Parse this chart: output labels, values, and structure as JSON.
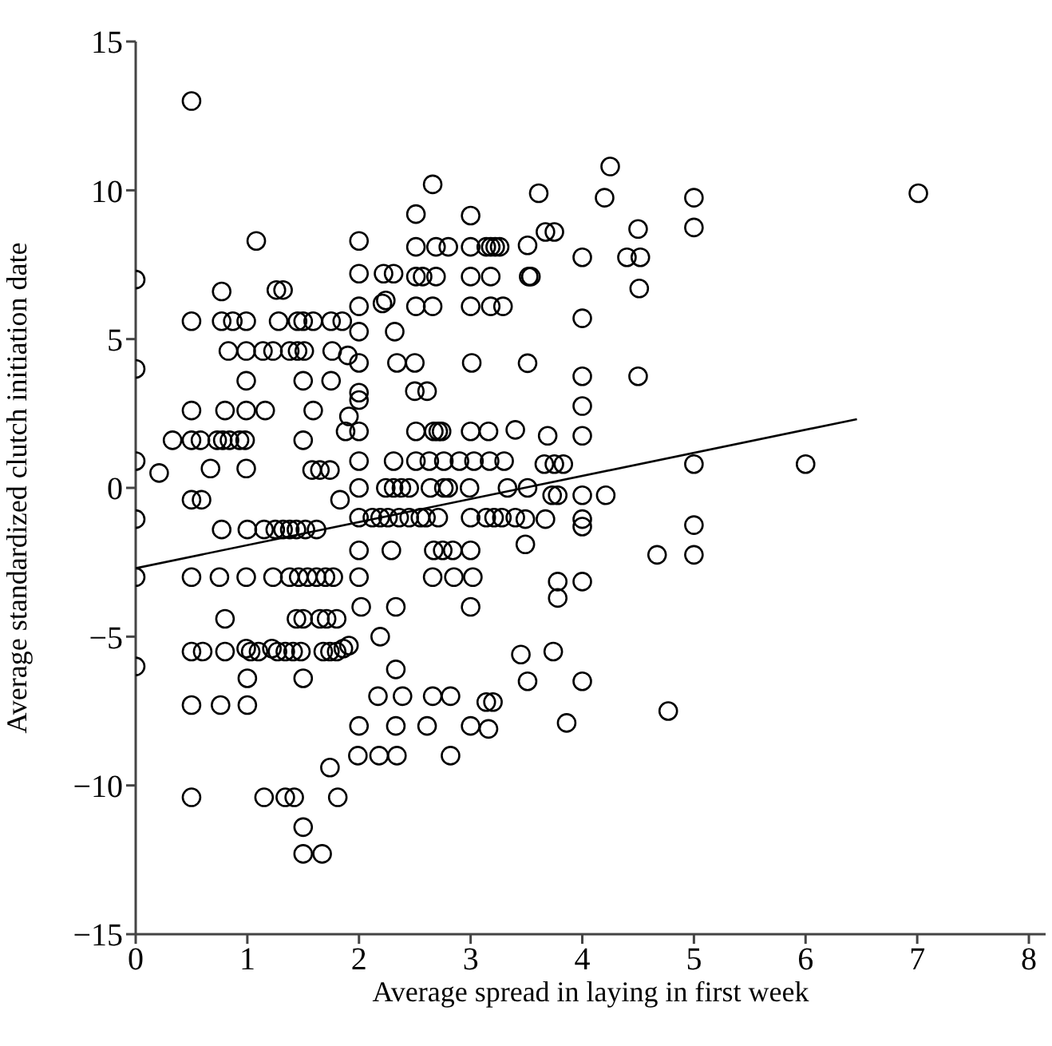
{
  "chart_data": {
    "type": "scatter",
    "xlabel": "Average spread in laying in first week",
    "ylabel": "Average standardized clutch initiation date",
    "xlim": [
      0,
      8.15
    ],
    "xticks": [
      0,
      1,
      2,
      3,
      4,
      5,
      6,
      7,
      8
    ],
    "ylim": [
      -15,
      15
    ],
    "yticks": [
      -15,
      -10,
      -5,
      0,
      5,
      10,
      15
    ],
    "grid": false,
    "legend": false,
    "series": [
      {
        "marker": "circle",
        "color": "#000000",
        "x": [
          0.5,
          2.66,
          2.51,
          3.0,
          1.08,
          2.0,
          2.51,
          2.69,
          2.8,
          3.0,
          3.14,
          3.18,
          3.22,
          3.26,
          3.51,
          2.0,
          2.22,
          2.31,
          2.51,
          2.57,
          2.69,
          3.0,
          3.18,
          3.52,
          3.54,
          0,
          0,
          0.77,
          1.26,
          1.32,
          2.0,
          2.21,
          2.24,
          2.51,
          2.66,
          3.0,
          3.18,
          3.29,
          0.5,
          0.77,
          0.87,
          0.99,
          1.28,
          1.45,
          1.5,
          1.59,
          1.75,
          1.85,
          2.0,
          2.32,
          0.83,
          0.99,
          1.14,
          1.23,
          1.38,
          1.45,
          1.51,
          1.76,
          1.9,
          2.0,
          2.34,
          2.5,
          3.01,
          3.51,
          0.99,
          1.5,
          1.75,
          2.0,
          2.0,
          2.5,
          2.61,
          0.5,
          0.8,
          0.99,
          1.16,
          1.59,
          1.91,
          1.88,
          2.0,
          2.51,
          2.67,
          2.71,
          2.74,
          3.0,
          3.16,
          3.4,
          0.33,
          0.5,
          0.58,
          0.73,
          0.78,
          0.84,
          0.93,
          0.98,
          1.5,
          0,
          2.0,
          2.31,
          2.51,
          2.63,
          2.76,
          2.9,
          3.03,
          3.17,
          3.3,
          0.21,
          0.67,
          0.99,
          1.58,
          1.65,
          1.74,
          2.0,
          2.24,
          2.31,
          2.38,
          2.45,
          2.64,
          2.76,
          2.8,
          2.99,
          3.33,
          3.51,
          0.5,
          0.59,
          1.83,
          4.25,
          3.61,
          4.2,
          5.0,
          7.01,
          5.0,
          4.5,
          3.67,
          3.75,
          4.0,
          4.4,
          4.52,
          4.51,
          4.0,
          4.0,
          4.5,
          4.0,
          3.69,
          4.0,
          3.66,
          3.75,
          3.83,
          5.0,
          6.0,
          3.73,
          3.78,
          4.0,
          4.21,
          0,
          0.77,
          1.0,
          1.15,
          1.25,
          1.32,
          1.38,
          1.44,
          1.52,
          1.62,
          2.0,
          2.12,
          2.19,
          2.26,
          2.36,
          2.45,
          2.55,
          2.6,
          2.71,
          3.0,
          3.14,
          3.21,
          3.28,
          3.4,
          3.49,
          3.67,
          4.0,
          4.0,
          5.0,
          2.0,
          2.29,
          2.67,
          2.75,
          2.84,
          3.0,
          3.49,
          4.67,
          5.0,
          0,
          0.5,
          0.75,
          0.99,
          1.23,
          1.38,
          1.46,
          1.54,
          1.62,
          1.7,
          1.77,
          2.0,
          2.66,
          2.85,
          3.02,
          3.78,
          4.0,
          3.78,
          2.02,
          2.33,
          3.0,
          0.8,
          1.44,
          1.5,
          1.65,
          1.71,
          1.8,
          2.19,
          0.5,
          0.6,
          0.8,
          0.99,
          1.03,
          1.1,
          1.22,
          1.27,
          1.34,
          1.41,
          1.48,
          1.68,
          1.74,
          1.8,
          1.86,
          1.91,
          3.45,
          3.74,
          0,
          1.0,
          1.5,
          2.33,
          3.51,
          4.0,
          2.17,
          2.39,
          2.66,
          2.82,
          3.14,
          3.2,
          4.77,
          0.5,
          0.76,
          1.0,
          2.0,
          2.33,
          2.61,
          3.0,
          3.16,
          3.86,
          1.99,
          2.18,
          2.34,
          2.82,
          1.74,
          0.5,
          1.15,
          1.34,
          1.42,
          1.81,
          1.5,
          1.5,
          1.67
        ],
        "values": [
          13.0,
          10.2,
          9.2,
          9.15,
          8.3,
          8.3,
          8.1,
          8.1,
          8.1,
          8.1,
          8.1,
          8.1,
          8.1,
          8.1,
          8.15,
          7.2,
          7.2,
          7.2,
          7.1,
          7.1,
          7.1,
          7.1,
          7.1,
          7.1,
          7.1,
          7.0,
          4.0,
          6.6,
          6.65,
          6.65,
          6.1,
          6.2,
          6.3,
          6.1,
          6.1,
          6.1,
          6.1,
          6.1,
          5.6,
          5.6,
          5.6,
          5.6,
          5.6,
          5.6,
          5.6,
          5.6,
          5.6,
          5.6,
          5.25,
          5.25,
          4.6,
          4.6,
          4.6,
          4.6,
          4.6,
          4.6,
          4.6,
          4.6,
          4.45,
          4.2,
          4.2,
          4.2,
          4.2,
          4.19,
          3.6,
          3.6,
          3.6,
          3.2,
          2.95,
          3.25,
          3.25,
          2.6,
          2.6,
          2.6,
          2.6,
          2.6,
          2.4,
          1.9,
          1.9,
          1.9,
          1.9,
          1.9,
          1.9,
          1.9,
          1.9,
          1.95,
          1.6,
          1.6,
          1.6,
          1.6,
          1.6,
          1.6,
          1.6,
          1.6,
          1.6,
          0.9,
          0.9,
          0.9,
          0.9,
          0.9,
          0.9,
          0.9,
          0.9,
          0.9,
          0.9,
          0.5,
          0.65,
          0.65,
          0.6,
          0.6,
          0.6,
          0,
          0,
          0,
          0,
          0,
          0,
          0,
          0,
          0,
          0,
          0,
          -0.4,
          -0.4,
          -0.4,
          10.8,
          9.9,
          9.75,
          9.75,
          9.9,
          8.75,
          8.7,
          8.6,
          8.6,
          7.75,
          7.75,
          7.75,
          6.7,
          5.7,
          3.75,
          3.75,
          2.75,
          1.75,
          1.75,
          0.8,
          0.8,
          0.8,
          0.8,
          0.8,
          -0.25,
          -0.25,
          -0.25,
          -0.25,
          -1.05,
          -1.4,
          -1.4,
          -1.4,
          -1.4,
          -1.4,
          -1.4,
          -1.4,
          -1.4,
          -1.4,
          -1.0,
          -1.0,
          -1.0,
          -1.0,
          -1.0,
          -1.0,
          -1.0,
          -1.0,
          -1.0,
          -1.0,
          -1.0,
          -1.0,
          -1.0,
          -1.0,
          -1.05,
          -1.05,
          -1.05,
          -1.3,
          -1.25,
          -2.1,
          -2.1,
          -2.1,
          -2.1,
          -2.1,
          -2.1,
          -1.9,
          -2.25,
          -2.25,
          -3.0,
          -3.0,
          -3.0,
          -3.0,
          -3.0,
          -3.0,
          -3.0,
          -3.0,
          -3.0,
          -3.0,
          -3.0,
          -3.0,
          -3.0,
          -3.0,
          -3.0,
          -3.15,
          -3.15,
          -3.7,
          -4.0,
          -4.0,
          -4.0,
          -4.4,
          -4.4,
          -4.4,
          -4.4,
          -4.4,
          -4.4,
          -5.0,
          -5.5,
          -5.5,
          -5.5,
          -5.4,
          -5.5,
          -5.5,
          -5.4,
          -5.5,
          -5.5,
          -5.5,
          -5.5,
          -5.5,
          -5.5,
          -5.5,
          -5.4,
          -5.3,
          -5.6,
          -5.5,
          -6.0,
          -6.4,
          -6.4,
          -6.1,
          -6.5,
          -6.5,
          -7.0,
          -7.0,
          -7.0,
          -7.0,
          -7.2,
          -7.2,
          -7.5,
          -7.3,
          -7.3,
          -7.3,
          -8.0,
          -8.0,
          -8.0,
          -8.0,
          -8.1,
          -7.9,
          -9.0,
          -9.0,
          -9.0,
          -9.0,
          -9.4,
          -10.4,
          -10.4,
          -10.4,
          -10.4,
          -10.4,
          -11.4,
          -12.3,
          -12.3
        ]
      },
      {
        "type": "line",
        "marker": "none",
        "line_style": "solid",
        "color": "#000000",
        "x": [
          0,
          6.46
        ],
        "values": [
          -2.7,
          2.31
        ]
      }
    ]
  }
}
